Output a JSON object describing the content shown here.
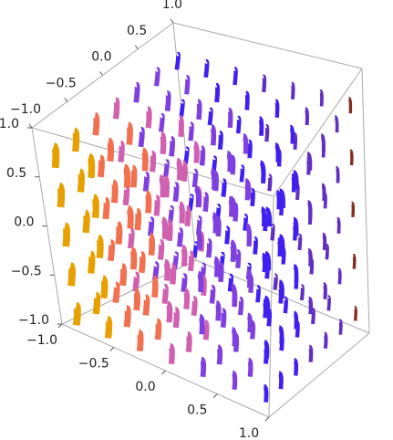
{
  "chart_data": {
    "type": "vector3d",
    "xlim": [
      -1,
      1
    ],
    "ylim": [
      -1,
      1
    ],
    "zlim": [
      -1,
      1
    ],
    "xticks": [
      {
        "value": -1,
        "label": "−1.0"
      },
      {
        "value": -0.5,
        "label": "−0.5"
      },
      {
        "value": 0,
        "label": "0.0"
      },
      {
        "value": 0.5,
        "label": "0.5"
      },
      {
        "value": 1,
        "label": "1.0"
      }
    ],
    "yticks": [
      {
        "value": -1,
        "label": "−1.0"
      },
      {
        "value": -0.5,
        "label": "−0.5"
      },
      {
        "value": 0,
        "label": "0.0"
      },
      {
        "value": 0.5,
        "label": "0.5"
      },
      {
        "value": 1,
        "label": "1.0"
      }
    ],
    "zticks": [
      {
        "value": -1,
        "label": "−1.0"
      },
      {
        "value": -0.5,
        "label": "−0.5"
      },
      {
        "value": 0,
        "label": "0.0"
      },
      {
        "value": 0.5,
        "label": "0.5"
      },
      {
        "value": 1,
        "label": "1.0"
      }
    ],
    "box": true
  }
}
